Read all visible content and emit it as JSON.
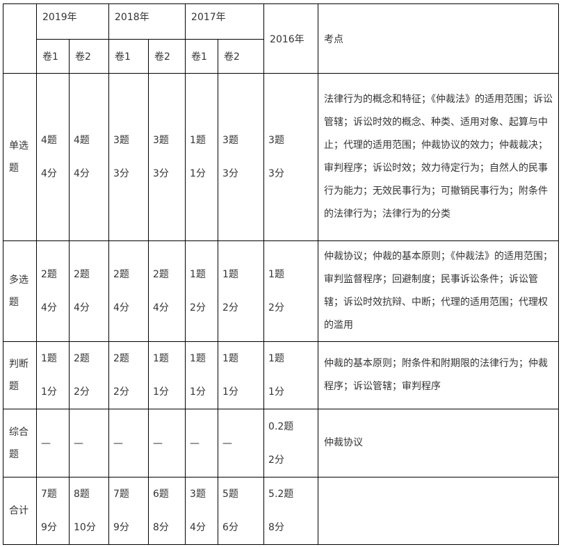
{
  "header": {
    "years": [
      "2019年",
      "2018年",
      "2017年"
    ],
    "year_2016": "2016年",
    "topic": "考点",
    "volumes": [
      "卷1",
      "卷2",
      "卷1",
      "卷2",
      "卷1",
      "卷2"
    ]
  },
  "rows": [
    {
      "label": "单选题",
      "cells": [
        "4题\n4分",
        "4题\n4分",
        "3题\n3分",
        "3题\n3分",
        "1题\n1分",
        "3题\n3分",
        "3题\n3分"
      ],
      "topics": "法律行为的概念和特征；《仲裁法》的适用范围；诉讼管辖；诉讼时效的概念、种类、适用对象、起算与中止；代理的适用范围；仲裁协议的效力；仲裁裁决；审判程序；诉讼时效；效力待定行为；自然人的民事行为能力；无效民事行为；可撤销民事行为；附条件的法律行为；法律行为的分类"
    },
    {
      "label": "多选题",
      "cells": [
        "2题\n4分",
        "2题\n4分",
        "2题\n4分",
        "2题\n4分",
        "1题\n2分",
        "1题\n2分",
        "1题\n2分"
      ],
      "topics": "仲裁协议；仲裁的基本原则；《仲裁法》的适用范围；审判监督程序；回避制度；民事诉讼条件；诉讼管辖；诉讼时效抗辩、中断；代理的适用范围；代理权的滥用"
    },
    {
      "label": "判断题",
      "cells": [
        "1题\n1分",
        "2题\n2分",
        "2题\n2分",
        "1题\n1分",
        "1题\n1分",
        "1题\n1分",
        "1题\n1分"
      ],
      "topics": "仲裁的基本原则；附条件和附期限的法律行为；仲裁程序；诉讼管辖；审判程序"
    },
    {
      "label": "综合题",
      "cells": [
        "—",
        "—",
        "—",
        "—",
        "—",
        "—",
        "0.2题\n2分"
      ],
      "topics": "仲裁协议"
    },
    {
      "label": "合计",
      "cells": [
        "7题\n9分",
        "8题\n10分",
        "7题\n9分",
        "6题\n8分",
        "3题\n4分",
        "5题\n6分",
        "5.2题\n8分"
      ],
      "topics": ""
    }
  ]
}
